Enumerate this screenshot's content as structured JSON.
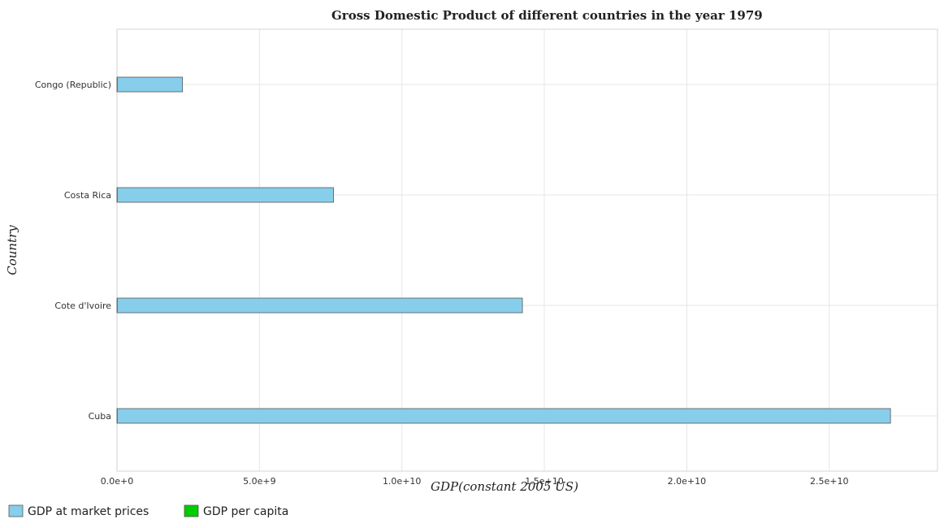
{
  "colors": {
    "gdp_market": "#87ceeb",
    "gdp_per_capita": "#00cc00",
    "bar_edge": "#555555",
    "grid": "#e6e6e6"
  },
  "chart_data": {
    "type": "bar",
    "orientation": "horizontal",
    "title": "Gross Domestic Product of different countries in the year 1979",
    "xlabel": "GDP(constant 2005 US)",
    "ylabel": "Country",
    "categories": [
      "Congo (Republic)",
      "Costa Rica",
      "Cote d'Ivoire",
      "Cuba"
    ],
    "series": [
      {
        "name": "GDP at market prices",
        "values": [
          2300000000,
          7600000000,
          14230000000,
          27150000000
        ]
      },
      {
        "name": "GDP per capita",
        "values": [
          1400,
          3300,
          1900,
          2800
        ]
      }
    ],
    "xlim": [
      0,
      28800000000
    ],
    "xticks": [
      0,
      5000000000,
      10000000000,
      15000000000,
      20000000000,
      25000000000
    ],
    "xtick_labels": [
      "0.0e+0",
      "5.0e+9",
      "1.0e+10",
      "1.5e+10",
      "2.0e+10",
      "2.5e+10"
    ],
    "grid": true,
    "legend": "bottom-left"
  }
}
